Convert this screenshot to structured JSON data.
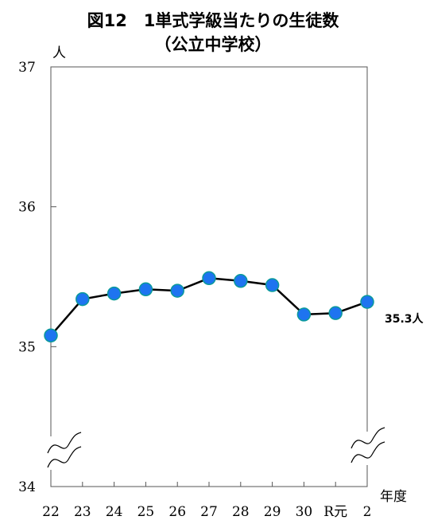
{
  "chart_data": {
    "type": "line",
    "title": "図12　1単式学級当たりの生徒数",
    "subtitle": "（公立中学校）",
    "ylabel": "人",
    "xlabel": "年度",
    "ylim": [
      34,
      37
    ],
    "yticks": [
      34,
      35,
      36,
      37
    ],
    "categories": [
      "22",
      "23",
      "24",
      "25",
      "26",
      "27",
      "28",
      "29",
      "30",
      "R元",
      "2"
    ],
    "values": [
      35.08,
      35.34,
      35.38,
      35.41,
      35.4,
      35.49,
      35.47,
      35.44,
      35.23,
      35.24,
      35.32
    ],
    "axis_break": true,
    "grid": false,
    "line_color": "#000000",
    "marker_color": "#1e74f0",
    "marker_edge_color": "#0a9a9a",
    "annotation": "35.3人"
  }
}
